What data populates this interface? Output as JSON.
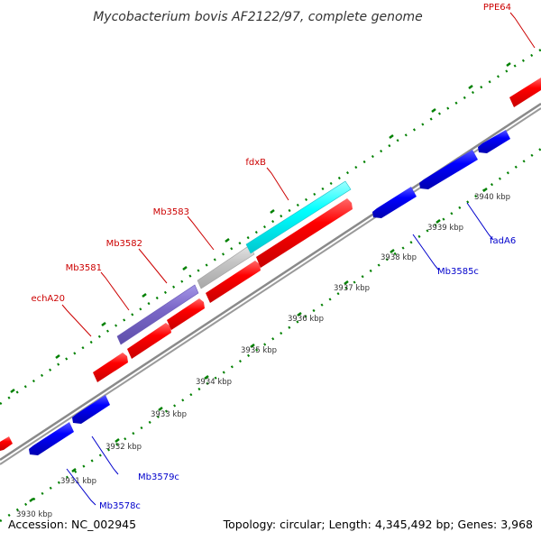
{
  "header": {
    "title": "Mycobacterium bovis AF2122/97, complete genome"
  },
  "footer": {
    "accession": "Accession: NC_002945",
    "summary": "Topology: circular; Length: 4,345,492 bp; Genes: 3,968"
  },
  "colors": {
    "forward_gene": "#ff0000",
    "reverse_gene": "#0000ff",
    "highlight_purple": "#7b68c8",
    "highlight_grey": "#c0c0c0",
    "highlight_cyan": "#00ffff",
    "backbone": "#888888",
    "tick": "#008000",
    "label_forward": "#cc0000",
    "label_reverse": "#0000cc"
  },
  "scale": {
    "unit": "kbp",
    "ticks": [
      {
        "label": "3930 kbp"
      },
      {
        "label": "3931 kbp"
      },
      {
        "label": "3932 kbp"
      },
      {
        "label": "3933 kbp"
      },
      {
        "label": "3934 kbp"
      },
      {
        "label": "3935 kbp"
      },
      {
        "label": "3936 kbp"
      },
      {
        "label": "3937 kbp"
      },
      {
        "label": "3938 kbp"
      },
      {
        "label": "3939 kbp"
      },
      {
        "label": "3940 kbp"
      }
    ]
  },
  "gene_labels": {
    "forward": [
      {
        "name": "PPE64"
      },
      {
        "name": "fdxB"
      },
      {
        "name": "Mb3583"
      },
      {
        "name": "Mb3582"
      },
      {
        "name": "Mb3581"
      },
      {
        "name": "echA20"
      }
    ],
    "reverse": [
      {
        "name": "fadA6"
      },
      {
        "name": "Mb3585c"
      },
      {
        "name": "Mb3579c"
      },
      {
        "name": "Mb3578c"
      }
    ]
  }
}
